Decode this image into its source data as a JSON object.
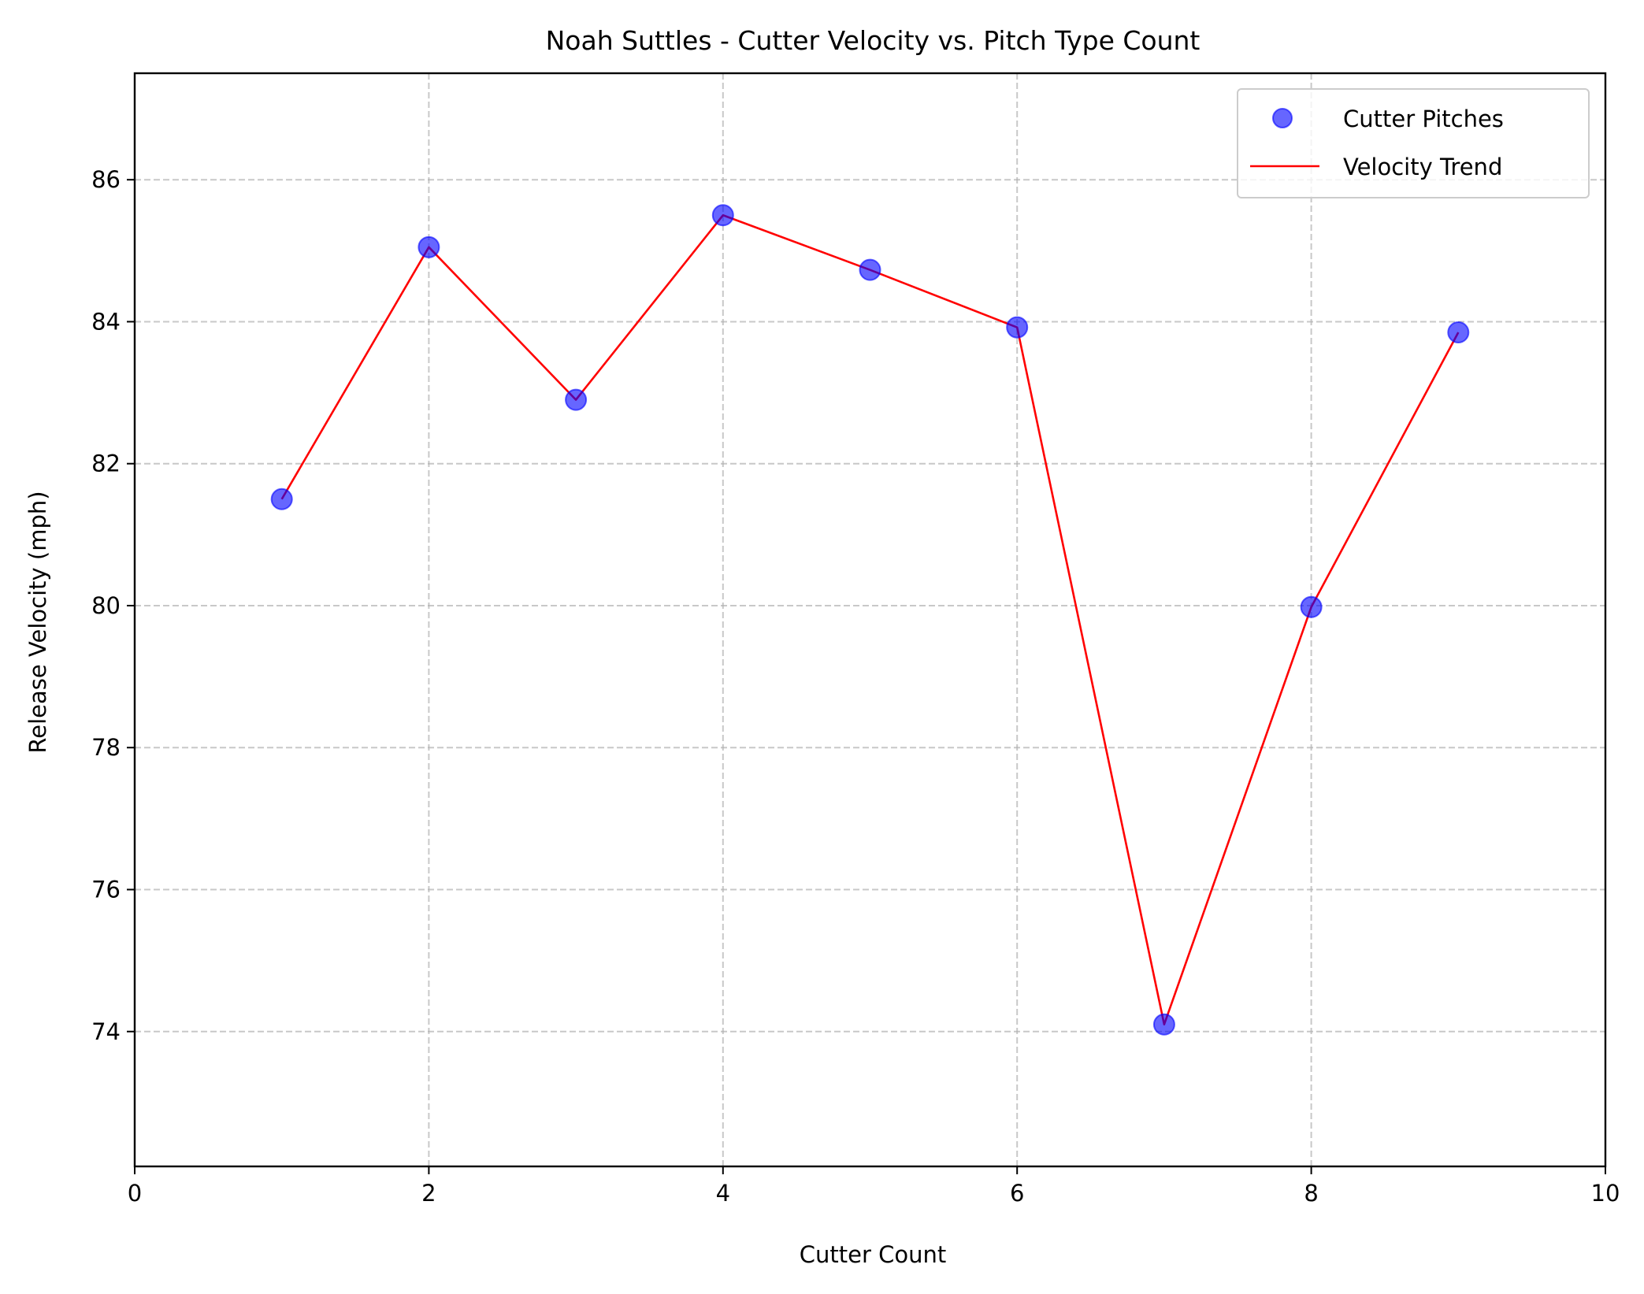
{
  "chart_data": {
    "type": "scatter",
    "title": "Noah Suttles - Cutter Velocity vs. Pitch Type Count",
    "xlabel": "Cutter Count",
    "ylabel": "Release Velocity (mph)",
    "xlim": [
      0,
      10
    ],
    "ylim": [
      72.1,
      87.5
    ],
    "xticks": [
      0,
      2,
      4,
      6,
      8,
      10
    ],
    "yticks": [
      74,
      76,
      78,
      80,
      82,
      84,
      86
    ],
    "x": [
      1,
      2,
      3,
      4,
      5,
      6,
      7,
      8,
      9
    ],
    "series": [
      {
        "name": "Cutter Pitches",
        "kind": "scatter",
        "color": "#0000ff",
        "values": [
          81.5,
          85.05,
          82.9,
          85.5,
          84.73,
          83.92,
          74.1,
          79.98,
          83.85
        ]
      },
      {
        "name": "Velocity Trend",
        "kind": "line",
        "color": "#ff0000",
        "values": [
          81.5,
          85.05,
          82.9,
          85.5,
          84.73,
          83.92,
          74.1,
          79.98,
          83.85
        ]
      }
    ],
    "grid": true,
    "legend_position": "top-right"
  }
}
